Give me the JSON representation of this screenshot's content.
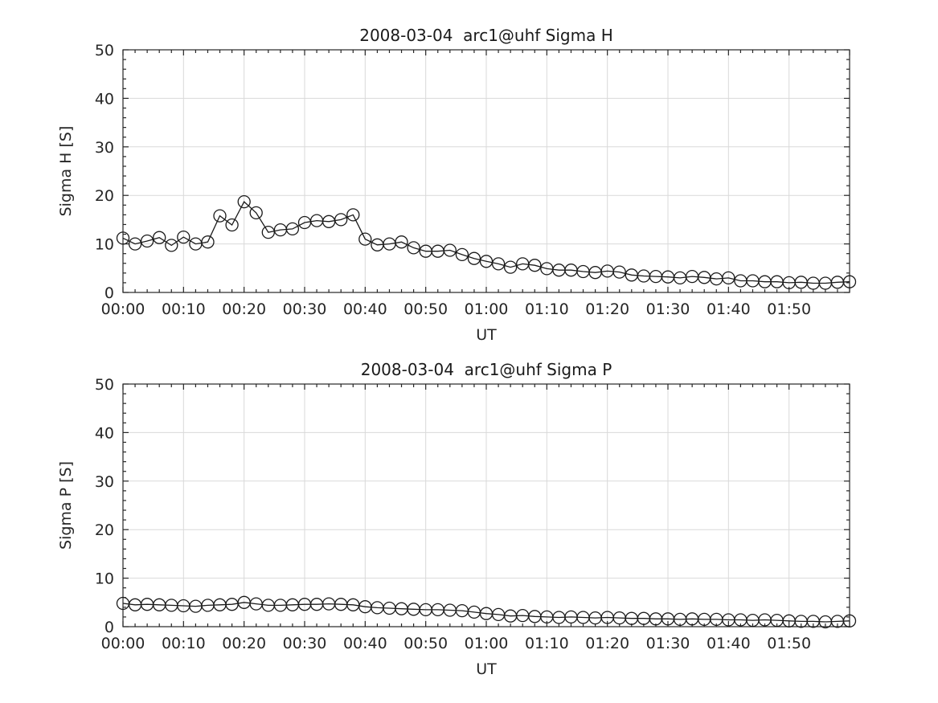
{
  "figure": {
    "background": "#ffffff",
    "axis_color": "#262626",
    "grid_color": "#d9d9d9",
    "data_color": "#1a1a1a"
  },
  "chart_data": [
    {
      "type": "line",
      "title": "2008-03-04  arc1@uhf Sigma H",
      "xlabel": "UT",
      "ylabel": "Sigma H [S]",
      "ylim": [
        0,
        50
      ],
      "xlim_minutes": [
        0,
        120
      ],
      "grid": "on",
      "legend": "none",
      "marker": "open-circle",
      "line_style": "solid",
      "xtick_minutes": [
        0,
        10,
        20,
        30,
        40,
        50,
        60,
        70,
        80,
        90,
        100,
        110
      ],
      "xtick_labels": [
        "00:00",
        "00:10",
        "00:20",
        "00:30",
        "00:40",
        "00:50",
        "01:00",
        "01:10",
        "01:20",
        "01:30",
        "01:40",
        "01:50"
      ],
      "ytick_values": [
        0,
        10,
        20,
        30,
        40,
        50
      ],
      "ytick_labels": [
        "0",
        "10",
        "20",
        "30",
        "40",
        "50"
      ],
      "minor_x_step_minutes": 2,
      "minor_y_step": 2,
      "x_minutes": [
        0,
        2,
        4,
        6,
        8,
        10,
        12,
        14,
        16,
        18,
        20,
        22,
        24,
        26,
        28,
        30,
        32,
        34,
        36,
        38,
        40,
        42,
        44,
        46,
        48,
        50,
        52,
        54,
        56,
        58,
        60,
        62,
        64,
        66,
        68,
        70,
        72,
        74,
        76,
        78,
        80,
        82,
        84,
        86,
        88,
        90,
        92,
        94,
        96,
        98,
        100,
        102,
        104,
        106,
        108,
        110,
        112,
        114,
        116,
        118,
        120
      ],
      "values": [
        11.2,
        10.0,
        10.6,
        11.3,
        9.7,
        11.4,
        10.0,
        10.4,
        15.8,
        13.9,
        18.7,
        16.4,
        12.4,
        12.9,
        13.1,
        14.4,
        14.8,
        14.6,
        15.0,
        16.0,
        11.0,
        9.8,
        10.0,
        10.4,
        9.2,
        8.5,
        8.5,
        8.7,
        7.8,
        7.0,
        6.4,
        5.9,
        5.2,
        5.9,
        5.6,
        4.9,
        4.6,
        4.6,
        4.3,
        4.1,
        4.4,
        4.2,
        3.6,
        3.4,
        3.3,
        3.2,
        3.0,
        3.3,
        3.1,
        2.8,
        3.0,
        2.4,
        2.4,
        2.2,
        2.2,
        2.0,
        2.1,
        1.9,
        1.9,
        2.1,
        2.2
      ]
    },
    {
      "type": "line",
      "title": "2008-03-04  arc1@uhf Sigma P",
      "xlabel": "UT",
      "ylabel": "Sigma P [S]",
      "ylim": [
        0,
        50
      ],
      "xlim_minutes": [
        0,
        120
      ],
      "grid": "on",
      "legend": "none",
      "marker": "open-circle",
      "line_style": "solid",
      "xtick_minutes": [
        0,
        10,
        20,
        30,
        40,
        50,
        60,
        70,
        80,
        90,
        100,
        110
      ],
      "xtick_labels": [
        "00:00",
        "00:10",
        "00:20",
        "00:30",
        "00:40",
        "00:50",
        "01:00",
        "01:10",
        "01:20",
        "01:30",
        "01:40",
        "01:50"
      ],
      "ytick_values": [
        0,
        10,
        20,
        30,
        40,
        50
      ],
      "ytick_labels": [
        "0",
        "10",
        "20",
        "30",
        "40",
        "50"
      ],
      "minor_x_step_minutes": 2,
      "minor_y_step": 2,
      "x_minutes": [
        0,
        2,
        4,
        6,
        8,
        10,
        12,
        14,
        16,
        18,
        20,
        22,
        24,
        26,
        28,
        30,
        32,
        34,
        36,
        38,
        40,
        42,
        44,
        46,
        48,
        50,
        52,
        54,
        56,
        58,
        60,
        62,
        64,
        66,
        68,
        70,
        72,
        74,
        76,
        78,
        80,
        82,
        84,
        86,
        88,
        90,
        92,
        94,
        96,
        98,
        100,
        102,
        104,
        106,
        108,
        110,
        112,
        114,
        116,
        118,
        120
      ],
      "values": [
        4.8,
        4.5,
        4.6,
        4.5,
        4.4,
        4.3,
        4.2,
        4.4,
        4.5,
        4.6,
        5.0,
        4.7,
        4.4,
        4.4,
        4.5,
        4.6,
        4.6,
        4.7,
        4.6,
        4.5,
        4.1,
        3.9,
        3.8,
        3.7,
        3.6,
        3.5,
        3.5,
        3.4,
        3.3,
        3.0,
        2.7,
        2.5,
        2.2,
        2.3,
        2.1,
        2.0,
        1.9,
        2.0,
        1.9,
        1.8,
        1.9,
        1.8,
        1.7,
        1.7,
        1.6,
        1.6,
        1.5,
        1.6,
        1.5,
        1.5,
        1.4,
        1.4,
        1.3,
        1.4,
        1.3,
        1.2,
        1.1,
        1.1,
        1.0,
        1.1,
        1.2
      ]
    }
  ]
}
